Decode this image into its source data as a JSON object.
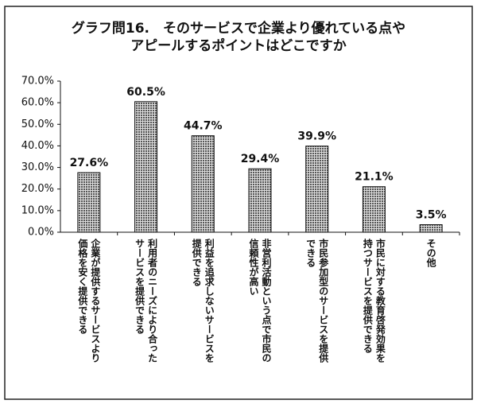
{
  "chart_data": {
    "type": "bar",
    "title": [
      "グラフ問16.　そのサービスで企業より優れている点や",
      "アピールするポイントはどこですか"
    ],
    "categories": [
      "企業が提供するサービスより価格を安く提供できる",
      "利用者のニーズにより合ったサービスを提供できる",
      "利益を追求しないサービスを提供できる",
      "非営利活動という点で市民の信頼性が高い",
      "市民参加型のサービスを提供できる",
      "市民に対する教育啓発効果を持つサービスを提供できる",
      "その他"
    ],
    "values": [
      27.6,
      60.5,
      44.7,
      29.4,
      39.9,
      21.1,
      3.5
    ],
    "value_labels": [
      "27.6%",
      "60.5%",
      "44.7%",
      "29.4%",
      "39.9%",
      "21.1%",
      "3.5%"
    ],
    "color": "#8a8a8a",
    "ylim": [
      0,
      70
    ],
    "yticks": [
      {
        "value": 0,
        "label": "0.0%"
      },
      {
        "value": 10,
        "label": "10.0%"
      },
      {
        "value": 20,
        "label": "20.0%"
      },
      {
        "value": 30,
        "label": "30.0%"
      },
      {
        "value": 40,
        "label": "40.0%"
      },
      {
        "value": 50,
        "label": "50.0%"
      },
      {
        "value": 60,
        "label": "60.0%"
      },
      {
        "value": 70,
        "label": "70.0%"
      }
    ],
    "grid": false
  }
}
